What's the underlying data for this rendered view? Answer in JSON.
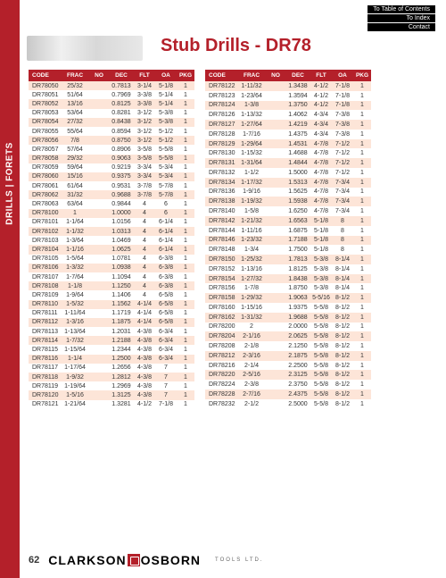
{
  "topLinks": [
    "To Table of Contents",
    "To Index",
    "Contact"
  ],
  "sidebar": "DRILLS | FORETS",
  "title": "Stub Drills - DR78",
  "headers": [
    "CODE",
    "FRAC",
    "NO",
    "DEC",
    "FLT",
    "OA",
    "PKG"
  ],
  "left": [
    [
      "DR78050",
      "25/32",
      "",
      "0.7813",
      "3-1/4",
      "5-1/8",
      "1"
    ],
    [
      "DR78051",
      "51/64",
      "",
      "0.7969",
      "3-3/8",
      "5-1/4",
      "1"
    ],
    [
      "DR78052",
      "13/16",
      "",
      "0.8125",
      "3-3/8",
      "5-1/4",
      "1"
    ],
    [
      "DR78053",
      "53/64",
      "",
      "0.8281",
      "3-1/2",
      "5-3/8",
      "1"
    ],
    [
      "DR78054",
      "27/32",
      "",
      "0.8438",
      "3-1/2",
      "5-3/8",
      "1"
    ],
    [
      "DR78055",
      "55/64",
      "",
      "0.8594",
      "3-1/2",
      "5-1/2",
      "1"
    ],
    [
      "DR78056",
      "7/8",
      "",
      "0.8750",
      "3-1/2",
      "5-1/2",
      "1"
    ],
    [
      "DR78057",
      "57/64",
      "",
      "0.8906",
      "3-5/8",
      "5-5/8",
      "1"
    ],
    [
      "DR78058",
      "29/32",
      "",
      "0.9063",
      "3-5/8",
      "5-5/8",
      "1"
    ],
    [
      "DR78059",
      "59/64",
      "",
      "0.9219",
      "3-3/4",
      "5-3/4",
      "1"
    ],
    [
      "DR78060",
      "15/16",
      "",
      "0.9375",
      "3-3/4",
      "5-3/4",
      "1"
    ],
    [
      "DR78061",
      "61/64",
      "",
      "0.9531",
      "3-7/8",
      "5-7/8",
      "1"
    ],
    [
      "DR78062",
      "31/32",
      "",
      "0.9688",
      "3-7/8",
      "5-7/8",
      "1"
    ],
    [
      "DR78063",
      "63/64",
      "",
      "0.9844",
      "4",
      "6",
      "1"
    ],
    [
      "DR78100",
      "1",
      "",
      "1.0000",
      "4",
      "6",
      "1"
    ],
    [
      "DR78101",
      "1-1/64",
      "",
      "1.0156",
      "4",
      "6-1/4",
      "1"
    ],
    [
      "DR78102",
      "1-1/32",
      "",
      "1.0313",
      "4",
      "6-1/4",
      "1"
    ],
    [
      "DR78103",
      "1-3/64",
      "",
      "1.0469",
      "4",
      "6-1/4",
      "1"
    ],
    [
      "DR78104",
      "1-1/16",
      "",
      "1.0625",
      "4",
      "6-1/4",
      "1"
    ],
    [
      "DR78105",
      "1-5/64",
      "",
      "1.0781",
      "4",
      "6-3/8",
      "1"
    ],
    [
      "DR78106",
      "1-3/32",
      "",
      "1.0938",
      "4",
      "6-3/8",
      "1"
    ],
    [
      "DR78107",
      "1-7/64",
      "",
      "1.1094",
      "4",
      "6-3/8",
      "1"
    ],
    [
      "DR78108",
      "1-1/8",
      "",
      "1.1250",
      "4",
      "6-3/8",
      "1"
    ],
    [
      "DR78109",
      "1-9/64",
      "",
      "1.1406",
      "4",
      "6-5/8",
      "1"
    ],
    [
      "DR78110",
      "1-5/32",
      "",
      "1.1562",
      "4-1/4",
      "6-5/8",
      "1"
    ],
    [
      "DR78111",
      "1-11/64",
      "",
      "1.1719",
      "4-1/4",
      "6-5/8",
      "1"
    ],
    [
      "DR78112",
      "1-3/16",
      "",
      "1.1875",
      "4-1/4",
      "6-5/8",
      "1"
    ],
    [
      "DR78113",
      "1-13/64",
      "",
      "1.2031",
      "4-3/8",
      "6-3/4",
      "1"
    ],
    [
      "DR78114",
      "1-7/32",
      "",
      "1.2188",
      "4-3/8",
      "6-3/4",
      "1"
    ],
    [
      "DR78115",
      "1-15/64",
      "",
      "1.2344",
      "4-3/8",
      "6-3/4",
      "1"
    ],
    [
      "DR78116",
      "1-1/4",
      "",
      "1.2500",
      "4-3/8",
      "6-3/4",
      "1"
    ],
    [
      "DR78117",
      "1-17/64",
      "",
      "1.2656",
      "4-3/8",
      "7",
      "1"
    ],
    [
      "DR78118",
      "1-9/32",
      "",
      "1.2812",
      "4-3/8",
      "7",
      "1"
    ],
    [
      "DR78119",
      "1-19/64",
      "",
      "1.2969",
      "4-3/8",
      "7",
      "1"
    ],
    [
      "DR78120",
      "1-5/16",
      "",
      "1.3125",
      "4-3/8",
      "7",
      "1"
    ],
    [
      "DR78121",
      "1-21/64",
      "",
      "1.3281",
      "4-1/2",
      "7-1/8",
      "1"
    ]
  ],
  "right": [
    [
      "DR78122",
      "1-11/32",
      "",
      "1.3438",
      "4-1/2",
      "7-1/8",
      "1"
    ],
    [
      "DR78123",
      "1-23/64",
      "",
      "1.3594",
      "4-1/2",
      "7-1/8",
      "1"
    ],
    [
      "DR78124",
      "1-3/8",
      "",
      "1.3750",
      "4-1/2",
      "7-1/8",
      "1"
    ],
    [
      "DR78126",
      "1-13/32",
      "",
      "1.4062",
      "4-3/4",
      "7-3/8",
      "1"
    ],
    [
      "DR78127",
      "1-27/64",
      "",
      "1.4219",
      "4-3/4",
      "7-3/8",
      "1"
    ],
    [
      "DR78128",
      "1-7/16",
      "",
      "1.4375",
      "4-3/4",
      "7-3/8",
      "1"
    ],
    [
      "DR78129",
      "1-29/64",
      "",
      "1.4531",
      "4-7/8",
      "7-1/2",
      "1"
    ],
    [
      "DR78130",
      "1-15/32",
      "",
      "1.4688",
      "4-7/8",
      "7-1/2",
      "1"
    ],
    [
      "DR78131",
      "1-31/64",
      "",
      "1.4844",
      "4-7/8",
      "7-1/2",
      "1"
    ],
    [
      "DR78132",
      "1-1/2",
      "",
      "1.5000",
      "4-7/8",
      "7-1/2",
      "1"
    ],
    [
      "DR78134",
      "1-17/32",
      "",
      "1.5313",
      "4-7/8",
      "7-3/4",
      "1"
    ],
    [
      "DR78136",
      "1-9/16",
      "",
      "1.5625",
      "4-7/8",
      "7-3/4",
      "1"
    ],
    [
      "DR78138",
      "1-19/32",
      "",
      "1.5938",
      "4-7/8",
      "7-3/4",
      "1"
    ],
    [
      "DR78140",
      "1-5/8",
      "",
      "1.6250",
      "4-7/8",
      "7-3/4",
      "1"
    ],
    [
      "DR78142",
      "1-21/32",
      "",
      "1.6563",
      "5-1/8",
      "8",
      "1"
    ],
    [
      "DR78144",
      "1-11/16",
      "",
      "1.6875",
      "5-1/8",
      "8",
      "1"
    ],
    [
      "DR78146",
      "1-23/32",
      "",
      "1.7188",
      "5-1/8",
      "8",
      "1"
    ],
    [
      "DR78148",
      "1-3/4",
      "",
      "1.7500",
      "5-1/8",
      "8",
      "1"
    ],
    [
      "DR78150",
      "1-25/32",
      "",
      "1.7813",
      "5-3/8",
      "8-1/4",
      "1"
    ],
    [
      "DR78152",
      "1-13/16",
      "",
      "1.8125",
      "5-3/8",
      "8-1/4",
      "1"
    ],
    [
      "DR78154",
      "1-27/32",
      "",
      "1.8438",
      "5-3/8",
      "8-1/4",
      "1"
    ],
    [
      "DR78156",
      "1-7/8",
      "",
      "1.8750",
      "5-3/8",
      "8-1/4",
      "1"
    ],
    [
      "DR78158",
      "1-29/32",
      "",
      "1.9063",
      "5-5/16",
      "8-1/2",
      "1"
    ],
    [
      "DR78160",
      "1-15/16",
      "",
      "1.9375",
      "5-5/8",
      "8-1/2",
      "1"
    ],
    [
      "DR78162",
      "1-31/32",
      "",
      "1.9688",
      "5-5/8",
      "8-1/2",
      "1"
    ],
    [
      "DR78200",
      "2",
      "",
      "2.0000",
      "5-5/8",
      "8-1/2",
      "1"
    ],
    [
      "DR78204",
      "2-1/16",
      "",
      "2.0625",
      "5-5/8",
      "8-1/2",
      "1"
    ],
    [
      "DR78208",
      "2-1/8",
      "",
      "2.1250",
      "5-5/8",
      "8-1/2",
      "1"
    ],
    [
      "DR78212",
      "2-3/16",
      "",
      "2.1875",
      "5-5/8",
      "8-1/2",
      "1"
    ],
    [
      "DR78216",
      "2-1/4",
      "",
      "2.2500",
      "5-5/8",
      "8-1/2",
      "1"
    ],
    [
      "DR78220",
      "2-5/16",
      "",
      "2.3125",
      "5-5/8",
      "8-1/2",
      "1"
    ],
    [
      "DR78224",
      "2-3/8",
      "",
      "2.3750",
      "5-5/8",
      "8-1/2",
      "1"
    ],
    [
      "DR78228",
      "2-7/16",
      "",
      "2.4375",
      "5-5/8",
      "8-1/2",
      "1"
    ],
    [
      "DR78232",
      "2-1/2",
      "",
      "2.5000",
      "5-5/8",
      "8-1/2",
      "1"
    ]
  ],
  "pageNum": "62",
  "brand1": "CLARKSON",
  "brand2": "OSBORN",
  "brandSub": "TOOLS LTD."
}
